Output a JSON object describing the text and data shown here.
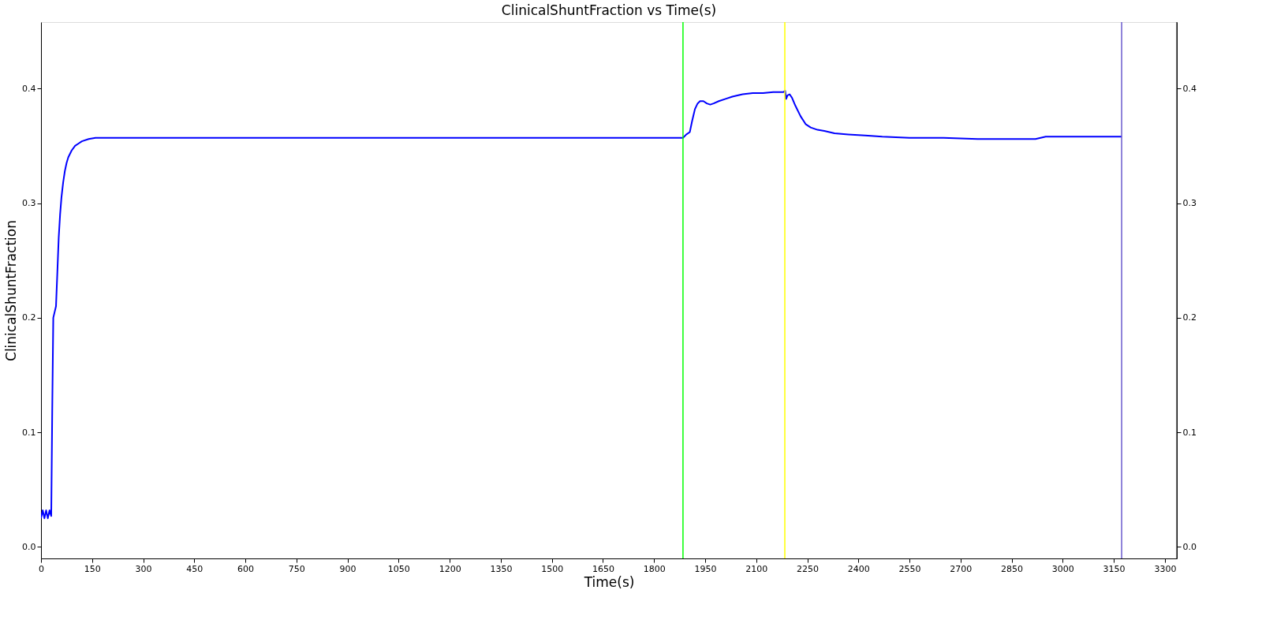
{
  "chart_data": {
    "type": "line",
    "title": "ClinicalShuntFraction vs Time(s)",
    "xlabel": "Time(s)",
    "ylabel": "ClinicalShuntFraction",
    "x": [
      0,
      5,
      10,
      15,
      20,
      25,
      30,
      33,
      36,
      40,
      44,
      48,
      52,
      56,
      60,
      65,
      70,
      75,
      80,
      90,
      100,
      110,
      120,
      140,
      160,
      200,
      300,
      600,
      900,
      1200,
      1500,
      1800,
      1885,
      1895,
      1905,
      1912,
      1920,
      1928,
      1935,
      1945,
      1955,
      1965,
      1975,
      1990,
      2010,
      2030,
      2060,
      2090,
      2120,
      2150,
      2180,
      2185,
      2188,
      2192,
      2198,
      2205,
      2215,
      2230,
      2245,
      2260,
      2280,
      2300,
      2330,
      2370,
      2420,
      2470,
      2550,
      2650,
      2750,
      2850,
      2920,
      2950,
      3000,
      3100,
      3173
    ],
    "series": [
      {
        "color": "#0000ff",
        "values": [
          0.025,
          0.032,
          0.025,
          0.032,
          0.025,
          0.032,
          0.027,
          0.12,
          0.2,
          0.205,
          0.21,
          0.24,
          0.27,
          0.29,
          0.305,
          0.318,
          0.328,
          0.335,
          0.34,
          0.346,
          0.35,
          0.352,
          0.354,
          0.356,
          0.357,
          0.357,
          0.357,
          0.357,
          0.357,
          0.357,
          0.357,
          0.357,
          0.357,
          0.36,
          0.362,
          0.372,
          0.382,
          0.387,
          0.389,
          0.389,
          0.387,
          0.386,
          0.387,
          0.389,
          0.391,
          0.393,
          0.395,
          0.396,
          0.396,
          0.397,
          0.397,
          0.398,
          0.391,
          0.394,
          0.395,
          0.392,
          0.385,
          0.376,
          0.369,
          0.366,
          0.364,
          0.363,
          0.361,
          0.36,
          0.359,
          0.358,
          0.357,
          0.357,
          0.356,
          0.356,
          0.356,
          0.358,
          0.358,
          0.358,
          0.358
        ]
      }
    ],
    "xlim": [
      0,
      3335
    ],
    "xticks": [
      0,
      150,
      300,
      450,
      600,
      750,
      900,
      1050,
      1200,
      1350,
      1500,
      1650,
      1800,
      1950,
      2100,
      2250,
      2400,
      2550,
      2700,
      2850,
      3000,
      3150,
      3300
    ],
    "ylim": [
      -0.01,
      0.458
    ],
    "yticks": [
      {
        "value": 0,
        "label": "0.0"
      },
      {
        "value": 0.1,
        "label": "0.1"
      },
      {
        "value": 0.2,
        "label": "0.2"
      },
      {
        "value": 0.3,
        "label": "0.3"
      },
      {
        "value": 0.4,
        "label": "0.4"
      }
    ],
    "y2lim": [
      -0.01,
      0.458
    ],
    "y2ticks": [
      {
        "value": 0,
        "label": "0.0"
      },
      {
        "value": 0.1,
        "label": "0.1"
      },
      {
        "value": 0.2,
        "label": "0.2"
      },
      {
        "value": 0.3,
        "label": "0.3"
      },
      {
        "value": 0.4,
        "label": "0.4"
      }
    ],
    "ref_lines": [
      {
        "axis": "x",
        "value": 1885,
        "color": "#00ff00"
      },
      {
        "axis": "x",
        "value": 2184,
        "color": "#ffff00"
      },
      {
        "axis": "x",
        "value": 3173,
        "color": "#6a5acd"
      }
    ],
    "grid": false,
    "legend": false,
    "marker": "none",
    "line_style": "solid"
  }
}
